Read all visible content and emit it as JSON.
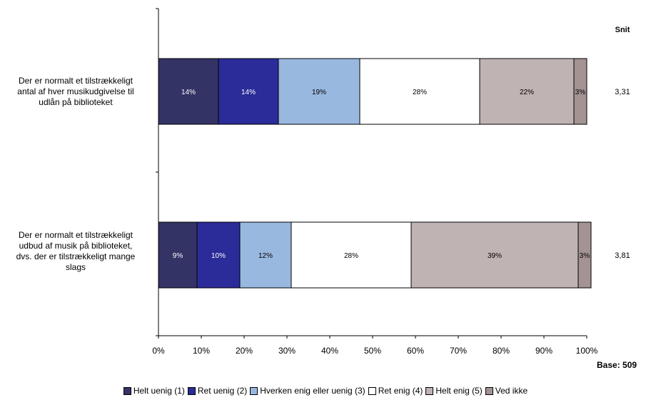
{
  "chart_data": {
    "type": "bar",
    "orientation": "horizontal",
    "stacked": true,
    "categories": [
      "Der er normalt et tilstrækkeligt antal af hver musikudgivelse til udlån på biblioteket",
      "Der er normalt et tilstrækkeligt udbud af musik på biblioteket, dvs. der er tilstrækkeligt mange slags"
    ],
    "series": [
      {
        "name": "Helt uenig (1)",
        "color": "#333366",
        "values": [
          14,
          9
        ],
        "labels": [
          "14%",
          "9%"
        ],
        "label_color": "#ffffff"
      },
      {
        "name": "Ret uenig (2)",
        "color": "#2b2b99",
        "values": [
          14,
          10
        ],
        "labels": [
          "14%",
          "10%"
        ],
        "label_color": "#ffffff"
      },
      {
        "name": "Hverken enig eller uenig (3)",
        "color": "#99b8e0",
        "values": [
          19,
          12
        ],
        "labels": [
          "19%",
          "12%"
        ],
        "label_color": "#000000"
      },
      {
        "name": "Ret enig (4)",
        "color": "#ffffff",
        "values": [
          28,
          28
        ],
        "labels": [
          "28%",
          "28%"
        ],
        "label_color": "#000000"
      },
      {
        "name": "Helt enig (5)",
        "color": "#c0b3b3",
        "values": [
          22,
          39
        ],
        "labels": [
          "22%",
          "39%"
        ],
        "label_color": "#000000"
      },
      {
        "name": "Ved ikke",
        "color": "#a39393",
        "values": [
          3,
          3
        ],
        "labels": [
          "3%",
          "3%"
        ],
        "label_color": "#000000"
      }
    ],
    "x_ticks": [
      "0%",
      "10%",
      "20%",
      "30%",
      "40%",
      "50%",
      "60%",
      "70%",
      "80%",
      "90%",
      "100%"
    ],
    "xlim": [
      0,
      100
    ],
    "snit_header": "Snit",
    "snit_values": [
      "3,31",
      "3,81"
    ],
    "base_label": "Base: 509",
    "legend_position": "bottom",
    "grid": false
  },
  "category_label_lines": [
    [
      "Der er normalt et tilstrækkeligt",
      "antal af hver musikudgivelse til",
      "udlån på biblioteket"
    ],
    [
      "Der er normalt et tilstrækkeligt",
      "udbud af musik på biblioteket,",
      "dvs. der er tilstrækkeligt mange",
      "slags"
    ]
  ]
}
